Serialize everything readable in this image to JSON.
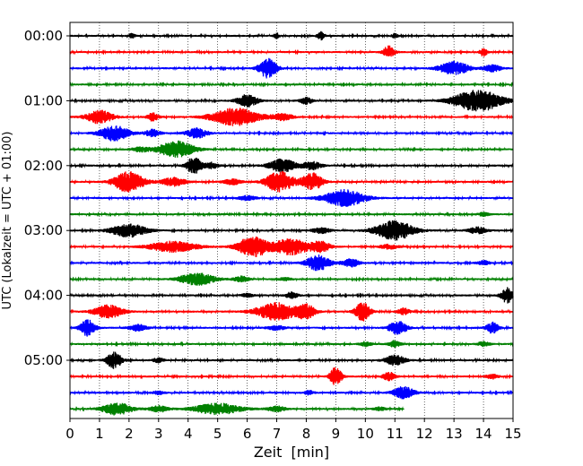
{
  "chart_data": {
    "type": "line",
    "chart_kind": "helicorder (seismogram drum plot)",
    "xlabel": "Zeit  [min]",
    "ylabel": "UTC (Lokalzeit = UTC + 01:00)",
    "xlim": [
      0,
      15
    ],
    "x_ticks": [
      "0",
      "1",
      "2",
      "3",
      "4",
      "5",
      "6",
      "7",
      "8",
      "9",
      "10",
      "11",
      "12",
      "13",
      "14",
      "15"
    ],
    "y_tick_labels": [
      "00:00",
      "01:00",
      "02:00",
      "03:00",
      "04:00",
      "05:00"
    ],
    "trace_interval_minutes": 15,
    "trace_count": 24,
    "trace_colors_cycle": [
      "#000000",
      "#ff0000",
      "#0000ff",
      "#008000"
    ],
    "vertical_grid": "dotted at each minute",
    "last_trace_end_minute": 11.3,
    "traces": [
      {
        "start": "00:00",
        "bursts": [
          [
            2.1,
            0.1,
            0.2
          ],
          [
            7.0,
            0.1,
            0.25
          ],
          [
            8.5,
            0.12,
            0.35
          ],
          [
            11.0,
            0.1,
            0.2
          ]
        ]
      },
      {
        "start": "00:15",
        "bursts": [
          [
            10.8,
            0.2,
            0.55
          ],
          [
            14.0,
            0.12,
            0.4
          ]
        ]
      },
      {
        "start": "00:30",
        "bursts": [
          [
            6.7,
            0.3,
            0.9
          ],
          [
            13.0,
            0.5,
            0.6
          ],
          [
            14.3,
            0.3,
            0.3
          ]
        ]
      },
      {
        "start": "00:45",
        "bursts": []
      },
      {
        "start": "01:00",
        "bursts": [
          [
            6.0,
            0.35,
            0.55
          ],
          [
            8.0,
            0.2,
            0.3
          ],
          [
            13.8,
            0.8,
            1.0
          ]
        ]
      },
      {
        "start": "01:15",
        "bursts": [
          [
            1.0,
            0.45,
            0.6
          ],
          [
            2.8,
            0.2,
            0.35
          ],
          [
            5.6,
            0.8,
            0.8
          ],
          [
            7.2,
            0.35,
            0.3
          ]
        ]
      },
      {
        "start": "01:30",
        "bursts": [
          [
            1.5,
            0.5,
            0.7
          ],
          [
            2.8,
            0.25,
            0.35
          ],
          [
            4.3,
            0.35,
            0.45
          ]
        ]
      },
      {
        "start": "01:45",
        "bursts": [
          [
            3.6,
            0.6,
            0.75
          ],
          [
            2.4,
            0.3,
            0.2
          ]
        ]
      },
      {
        "start": "02:00",
        "bursts": [
          [
            4.2,
            0.25,
            0.8
          ],
          [
            7.2,
            0.45,
            0.6
          ],
          [
            8.2,
            0.3,
            0.4
          ],
          [
            4.8,
            0.2,
            0.3
          ]
        ]
      },
      {
        "start": "02:15",
        "bursts": [
          [
            2.0,
            0.5,
            1.0
          ],
          [
            3.5,
            0.4,
            0.4
          ],
          [
            7.1,
            0.45,
            1.0
          ],
          [
            8.2,
            0.35,
            0.8
          ],
          [
            5.5,
            0.3,
            0.25
          ]
        ]
      },
      {
        "start": "02:30",
        "bursts": [
          [
            9.3,
            0.7,
            0.75
          ],
          [
            6.0,
            0.3,
            0.2
          ]
        ]
      },
      {
        "start": "02:45",
        "bursts": [
          [
            14.0,
            0.2,
            0.15
          ]
        ]
      },
      {
        "start": "03:00",
        "bursts": [
          [
            2.0,
            0.6,
            0.6
          ],
          [
            11.0,
            0.65,
            0.9
          ],
          [
            13.8,
            0.3,
            0.3
          ],
          [
            8.5,
            0.3,
            0.25
          ]
        ]
      },
      {
        "start": "03:15",
        "bursts": [
          [
            3.5,
            0.8,
            0.5
          ],
          [
            6.2,
            0.5,
            1.0
          ],
          [
            7.5,
            0.6,
            0.75
          ],
          [
            8.5,
            0.3,
            0.5
          ],
          [
            10.8,
            0.3,
            0.2
          ]
        ]
      },
      {
        "start": "03:30",
        "bursts": [
          [
            8.4,
            0.4,
            0.7
          ],
          [
            9.5,
            0.3,
            0.35
          ],
          [
            14.0,
            0.2,
            0.2
          ]
        ]
      },
      {
        "start": "03:45",
        "bursts": [
          [
            4.3,
            0.6,
            0.55
          ],
          [
            5.8,
            0.25,
            0.25
          ],
          [
            7.3,
            0.2,
            0.15
          ]
        ]
      },
      {
        "start": "04:00",
        "bursts": [
          [
            7.5,
            0.2,
            0.3
          ],
          [
            14.8,
            0.2,
            0.7
          ],
          [
            6.0,
            0.2,
            0.15
          ]
        ]
      },
      {
        "start": "04:15",
        "bursts": [
          [
            1.3,
            0.5,
            0.6
          ],
          [
            7.0,
            0.7,
            0.8
          ],
          [
            8.0,
            0.3,
            0.6
          ],
          [
            9.9,
            0.25,
            0.85
          ],
          [
            11.3,
            0.2,
            0.3
          ]
        ]
      },
      {
        "start": "04:30",
        "bursts": [
          [
            0.6,
            0.25,
            0.75
          ],
          [
            2.3,
            0.3,
            0.3
          ],
          [
            7.0,
            0.3,
            0.2
          ],
          [
            11.1,
            0.3,
            0.65
          ],
          [
            14.3,
            0.2,
            0.5
          ]
        ]
      },
      {
        "start": "04:45",
        "bursts": [
          [
            10.0,
            0.2,
            0.2
          ],
          [
            11.0,
            0.2,
            0.3
          ],
          [
            14.0,
            0.2,
            0.2
          ]
        ]
      },
      {
        "start": "05:00",
        "bursts": [
          [
            1.5,
            0.25,
            0.75
          ],
          [
            11.0,
            0.35,
            0.45
          ],
          [
            3.0,
            0.2,
            0.2
          ]
        ]
      },
      {
        "start": "05:15",
        "bursts": [
          [
            9.0,
            0.2,
            0.85
          ],
          [
            10.8,
            0.2,
            0.4
          ],
          [
            14.3,
            0.2,
            0.2
          ]
        ]
      },
      {
        "start": "05:30",
        "bursts": [
          [
            11.3,
            0.35,
            0.55
          ],
          [
            8.1,
            0.15,
            0.2
          ],
          [
            3.0,
            0.2,
            0.15
          ]
        ]
      },
      {
        "start": "05:45",
        "bursts": [
          [
            1.6,
            0.5,
            0.55
          ],
          [
            3.0,
            0.3,
            0.3
          ],
          [
            5.0,
            0.8,
            0.5
          ],
          [
            7.0,
            0.3,
            0.25
          ],
          [
            10.5,
            0.2,
            0.15
          ]
        ]
      }
    ]
  }
}
